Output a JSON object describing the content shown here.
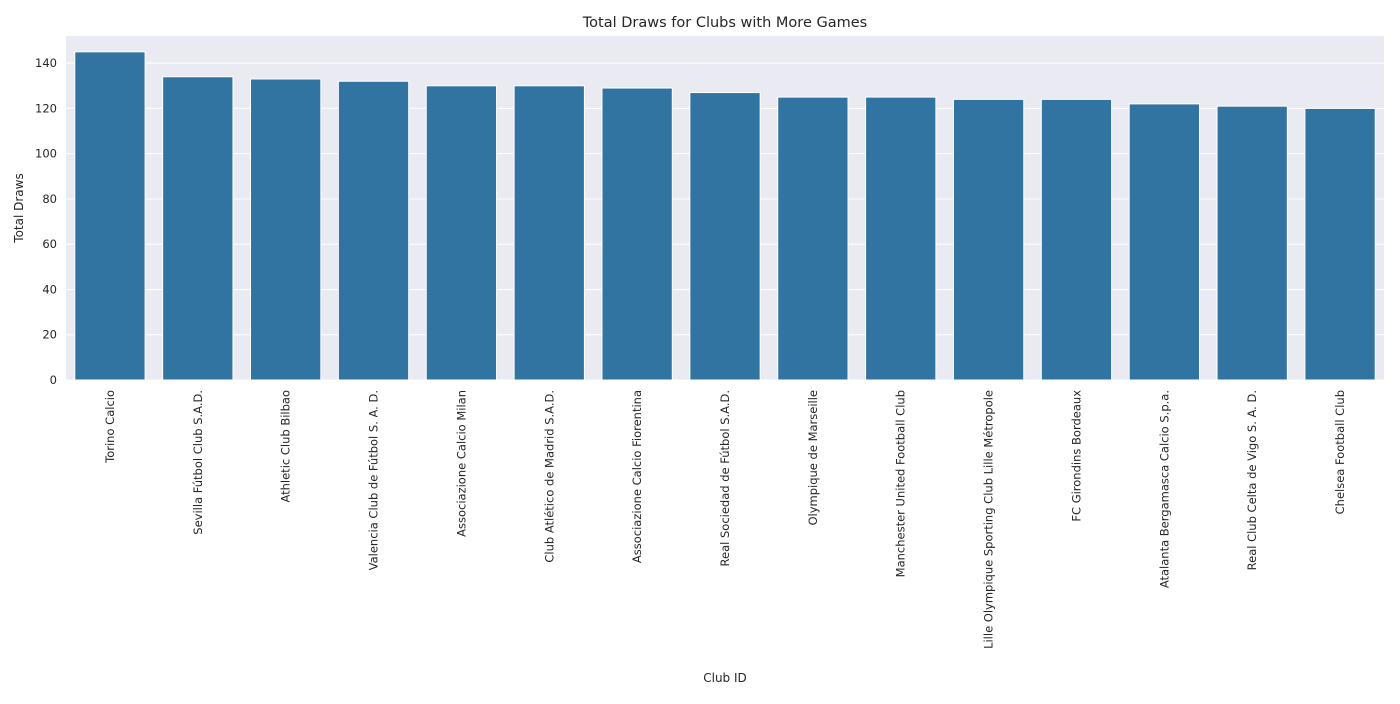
{
  "chart_data": {
    "type": "bar",
    "title": "Total Draws for Clubs with More Games",
    "xlabel": "Club ID",
    "ylabel": "Total Draws",
    "categories": [
      "Torino Calcio",
      "Sevilla Fútbol Club S.A.D.",
      "Athletic Club Bilbao",
      "Valencia Club de Fútbol S. A. D.",
      "Associazione Calcio Milan",
      "Club Atlético de Madrid S.A.D.",
      "Associazione Calcio Fiorentina",
      "Real Sociedad de Fútbol S.A.D.",
      "Olympique de Marseille",
      "Manchester United Football Club",
      "Lille Olympique Sporting Club Lille Métropole",
      "FC Girondins Bordeaux",
      "Atalanta Bergamasca Calcio S.p.a.",
      "Real Club Celta de Vigo S. A. D.",
      "Chelsea Football Club"
    ],
    "values": [
      145,
      134,
      133,
      132,
      130,
      130,
      129,
      127,
      125,
      125,
      124,
      124,
      122,
      121,
      120
    ],
    "ylim": [
      0,
      152
    ],
    "yticks": [
      0,
      20,
      40,
      60,
      80,
      100,
      120,
      140
    ],
    "grid": true,
    "style": "seaborn-darkgrid",
    "colors": {
      "bar": "#3274a1",
      "plot_background": "#eaeaf2",
      "gridline": "#ffffff",
      "text": "#262626"
    }
  }
}
